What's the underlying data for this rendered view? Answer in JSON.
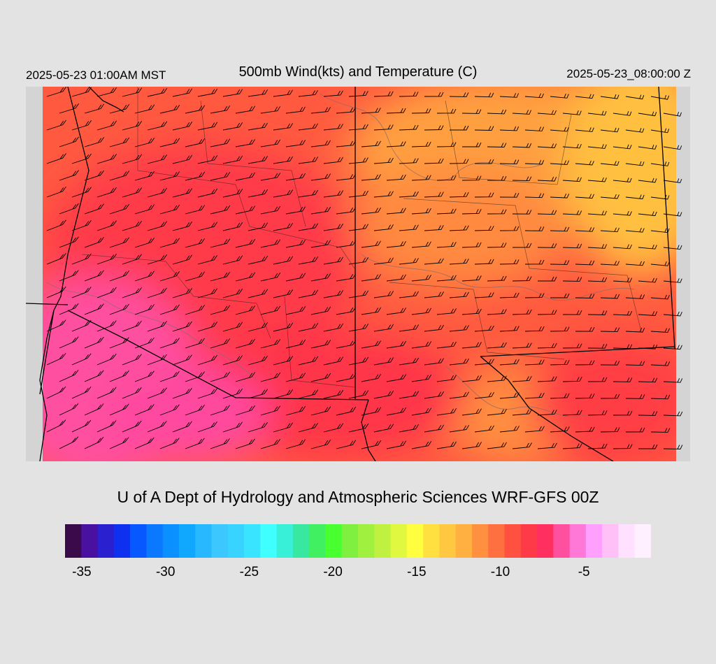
{
  "header": {
    "valid_time_local": "2025-05-23 01:00AM MST",
    "title": "500mb Wind(kts) and Temperature (C)",
    "valid_time_utc": "2025-05-23_08:00:00 Z"
  },
  "map": {
    "fields": [
      "temperature-fill",
      "wind-barbs",
      "temperature-contours",
      "state-boundaries",
      "county-boundaries"
    ],
    "colors": {
      "background": "#e3e3e3",
      "outside_domain": "#d4d4d4",
      "boundary": "#000000",
      "contour": "#7a7a7a"
    }
  },
  "credit": "U of A Dept of Hydrology and Atmospheric Sciences WRF-GFS 00Z",
  "colorbar": {
    "tick_labels": [
      "-35",
      "-30",
      "-25",
      "-20",
      "-15",
      "-10",
      "-5"
    ],
    "range": [
      -36,
      -1
    ],
    "colors": [
      "#3a0a4a",
      "#4a10a0",
      "#2a20d0",
      "#1030f0",
      "#0858ff",
      "#0a78ff",
      "#0a90ff",
      "#10a8ff",
      "#28b8ff",
      "#3cc8ff",
      "#38d4ff",
      "#38e4ff",
      "#40ffff",
      "#38f0d8",
      "#38e8a0",
      "#40f060",
      "#48ff30",
      "#80f040",
      "#a0f040",
      "#c0f040",
      "#e0f840",
      "#ffff40",
      "#ffe040",
      "#ffc840",
      "#ffb040",
      "#ff9040",
      "#ff7040",
      "#ff5040",
      "#ff3a48",
      "#ff3060",
      "#ff50a0",
      "#ff78d8",
      "#ffa0ff",
      "#ffc0f8",
      "#ffe0ff",
      "#fff0ff"
    ]
  }
}
